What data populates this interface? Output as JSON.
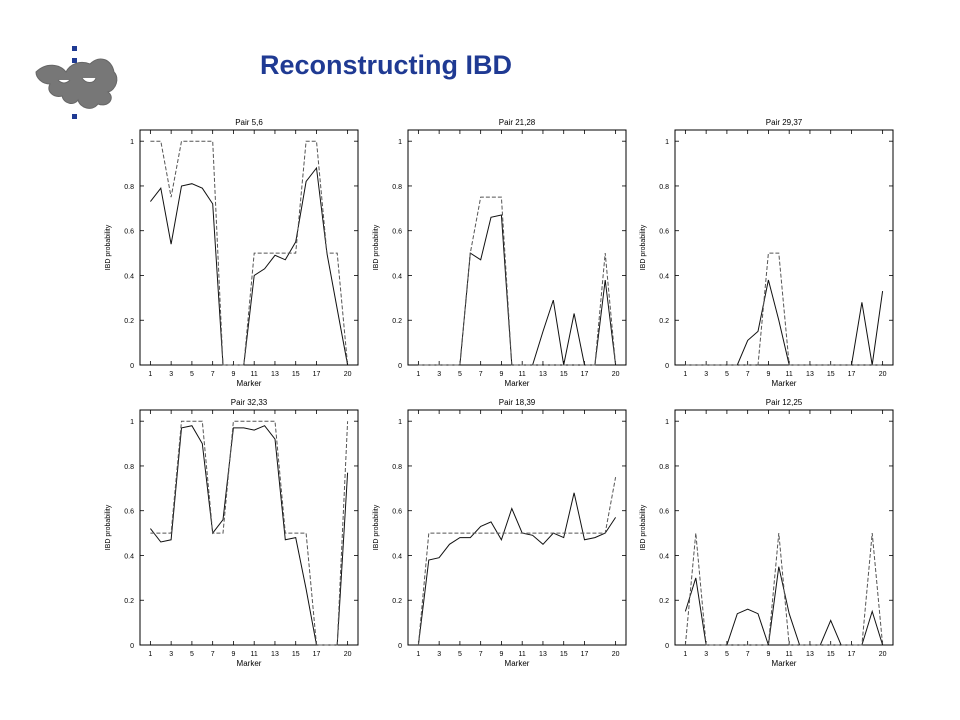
{
  "slide": {
    "title": "Reconstructing IBD"
  },
  "logo": {
    "icon": "university-flame-logo-icon"
  },
  "chart_data": [
    {
      "type": "line",
      "title": "Pair 5,6",
      "xlabel": "Marker",
      "ylabel": "IBD probability",
      "xlim": [
        0,
        21
      ],
      "ylim": [
        0,
        1.05
      ],
      "x_ticks": [
        1,
        3,
        5,
        7,
        9,
        11,
        13,
        15,
        17,
        20
      ],
      "y_ticks": [
        0,
        0.2,
        0.4,
        0.6,
        0.8,
        1
      ],
      "series": [
        {
          "style": "solid",
          "x": [
            1,
            2,
            3,
            4,
            5,
            6,
            7,
            8,
            9,
            10,
            11,
            12,
            13,
            14,
            15,
            16,
            17,
            18,
            19,
            20
          ],
          "values": [
            0.73,
            0.79,
            0.54,
            0.8,
            0.81,
            0.79,
            0.72,
            0,
            0,
            0,
            0.4,
            0.43,
            0.49,
            0.47,
            0.55,
            0.82,
            0.88,
            0.5,
            0.25,
            0
          ]
        },
        {
          "style": "dashed",
          "x": [
            1,
            2,
            3,
            4,
            5,
            6,
            7,
            8,
            9,
            10,
            11,
            12,
            13,
            14,
            15,
            16,
            17,
            18,
            19,
            20
          ],
          "values": [
            1,
            1,
            0.75,
            1,
            1,
            1,
            1,
            0,
            0,
            0,
            0.5,
            0.5,
            0.5,
            0.5,
            0.5,
            1,
            1,
            0.5,
            0.5,
            0
          ]
        }
      ]
    },
    {
      "type": "line",
      "title": "Pair 21,28",
      "xlabel": "Marker",
      "ylabel": "IBD probability",
      "xlim": [
        0,
        21
      ],
      "ylim": [
        0,
        1.05
      ],
      "x_ticks": [
        1,
        3,
        5,
        7,
        9,
        11,
        13,
        15,
        17,
        20
      ],
      "y_ticks": [
        0,
        0.2,
        0.4,
        0.6,
        0.8,
        1
      ],
      "series": [
        {
          "style": "solid",
          "x": [
            1,
            2,
            3,
            4,
            5,
            6,
            7,
            8,
            9,
            10,
            11,
            12,
            13,
            14,
            15,
            16,
            17,
            18,
            19,
            20
          ],
          "values": [
            0,
            0,
            0,
            0,
            0,
            0.5,
            0.47,
            0.66,
            0.67,
            0,
            0,
            0,
            0.15,
            0.29,
            0,
            0.23,
            0,
            0,
            0.38,
            0
          ]
        },
        {
          "style": "dashed",
          "x": [
            1,
            2,
            3,
            4,
            5,
            6,
            7,
            8,
            9,
            10,
            11,
            12,
            13,
            14,
            15,
            16,
            17,
            18,
            19,
            20
          ],
          "values": [
            0,
            0,
            0,
            0,
            0,
            0.5,
            0.75,
            0.75,
            0.75,
            0,
            0,
            0,
            0,
            0,
            0,
            0,
            0,
            0,
            0.5,
            0
          ]
        }
      ]
    },
    {
      "type": "line",
      "title": "Pair 29,37",
      "xlabel": "Marker",
      "ylabel": "IBD probability",
      "xlim": [
        0,
        21
      ],
      "ylim": [
        0,
        1.05
      ],
      "x_ticks": [
        1,
        3,
        5,
        7,
        9,
        11,
        13,
        15,
        17,
        20
      ],
      "y_ticks": [
        0,
        0.2,
        0.4,
        0.6,
        0.8,
        1
      ],
      "series": [
        {
          "style": "solid",
          "x": [
            1,
            2,
            3,
            4,
            5,
            6,
            7,
            8,
            9,
            10,
            11,
            12,
            13,
            14,
            15,
            16,
            17,
            18,
            19,
            20
          ],
          "values": [
            0,
            0,
            0,
            0,
            0,
            0,
            0.11,
            0.15,
            0.38,
            0.2,
            0,
            0,
            0,
            0,
            0,
            0,
            0,
            0.28,
            0,
            0.33
          ]
        },
        {
          "style": "dashed",
          "x": [
            1,
            2,
            3,
            4,
            5,
            6,
            7,
            8,
            9,
            10,
            11,
            12,
            13,
            14,
            15,
            16,
            17,
            18,
            19,
            20
          ],
          "values": [
            0,
            0,
            0,
            0,
            0,
            0,
            0,
            0,
            0.5,
            0.5,
            0,
            0,
            0,
            0,
            0,
            0,
            0,
            0,
            0,
            0
          ]
        }
      ]
    },
    {
      "type": "line",
      "title": "Pair 32,33",
      "xlabel": "Marker",
      "ylabel": "IBD probability",
      "xlim": [
        0,
        21
      ],
      "ylim": [
        0,
        1.05
      ],
      "x_ticks": [
        1,
        3,
        5,
        7,
        9,
        11,
        13,
        15,
        17,
        20
      ],
      "y_ticks": [
        0,
        0.2,
        0.4,
        0.6,
        0.8,
        1
      ],
      "series": [
        {
          "style": "solid",
          "x": [
            1,
            2,
            3,
            4,
            5,
            6,
            7,
            8,
            9,
            10,
            11,
            12,
            13,
            14,
            15,
            16,
            17,
            18,
            19,
            20
          ],
          "values": [
            0.52,
            0.46,
            0.47,
            0.97,
            0.98,
            0.9,
            0.5,
            0.56,
            0.97,
            0.97,
            0.96,
            0.98,
            0.92,
            0.47,
            0.48,
            0.25,
            0,
            0,
            0,
            0.77
          ]
        },
        {
          "style": "dashed",
          "x": [
            1,
            2,
            3,
            4,
            5,
            6,
            7,
            8,
            9,
            10,
            11,
            12,
            13,
            14,
            15,
            16,
            17,
            18,
            19,
            20
          ],
          "values": [
            0.5,
            0.5,
            0.5,
            1,
            1,
            1,
            0.5,
            0.5,
            1,
            1,
            1,
            1,
            1,
            0.5,
            0.5,
            0.5,
            0,
            0,
            0,
            1
          ]
        }
      ]
    },
    {
      "type": "line",
      "title": "Pair 18,39",
      "xlabel": "Marker",
      "ylabel": "IBD probability",
      "xlim": [
        0,
        21
      ],
      "ylim": [
        0,
        1.05
      ],
      "x_ticks": [
        1,
        3,
        5,
        7,
        9,
        11,
        13,
        15,
        17,
        20
      ],
      "y_ticks": [
        0,
        0.2,
        0.4,
        0.6,
        0.8,
        1
      ],
      "series": [
        {
          "style": "solid",
          "x": [
            1,
            2,
            3,
            4,
            5,
            6,
            7,
            8,
            9,
            10,
            11,
            12,
            13,
            14,
            15,
            16,
            17,
            18,
            19,
            20
          ],
          "values": [
            0,
            0.38,
            0.39,
            0.45,
            0.48,
            0.48,
            0.53,
            0.55,
            0.47,
            0.61,
            0.5,
            0.49,
            0.45,
            0.5,
            0.48,
            0.68,
            0.47,
            0.48,
            0.5,
            0.57
          ]
        },
        {
          "style": "dashed",
          "x": [
            1,
            2,
            3,
            4,
            5,
            6,
            7,
            8,
            9,
            10,
            11,
            12,
            13,
            14,
            15,
            16,
            17,
            18,
            19,
            20
          ],
          "values": [
            0,
            0.5,
            0.5,
            0.5,
            0.5,
            0.5,
            0.5,
            0.5,
            0.5,
            0.5,
            0.5,
            0.5,
            0.5,
            0.5,
            0.5,
            0.5,
            0.5,
            0.5,
            0.5,
            0.75
          ]
        }
      ]
    },
    {
      "type": "line",
      "title": "Pair 12,25",
      "xlabel": "Marker",
      "ylabel": "IBD probability",
      "xlim": [
        0,
        21
      ],
      "ylim": [
        0,
        1.05
      ],
      "x_ticks": [
        1,
        3,
        5,
        7,
        9,
        11,
        13,
        15,
        17,
        20
      ],
      "y_ticks": [
        0,
        0.2,
        0.4,
        0.6,
        0.8,
        1
      ],
      "series": [
        {
          "style": "solid",
          "x": [
            1,
            2,
            3,
            4,
            5,
            6,
            7,
            8,
            9,
            10,
            11,
            12,
            13,
            14,
            15,
            16,
            17,
            18,
            19,
            20
          ],
          "values": [
            0.15,
            0.3,
            0,
            0,
            0,
            0.14,
            0.16,
            0.14,
            0,
            0.35,
            0.14,
            0,
            0,
            0,
            0.11,
            0,
            0,
            0,
            0.15,
            0
          ]
        },
        {
          "style": "dashed",
          "x": [
            1,
            2,
            3,
            4,
            5,
            6,
            7,
            8,
            9,
            10,
            11,
            12,
            13,
            14,
            15,
            16,
            17,
            18,
            19,
            20
          ],
          "values": [
            0,
            0.5,
            0,
            0,
            0,
            0,
            0,
            0,
            0,
            0.5,
            0,
            0,
            0,
            0,
            0,
            0,
            0,
            0,
            0.5,
            0
          ]
        }
      ]
    }
  ]
}
